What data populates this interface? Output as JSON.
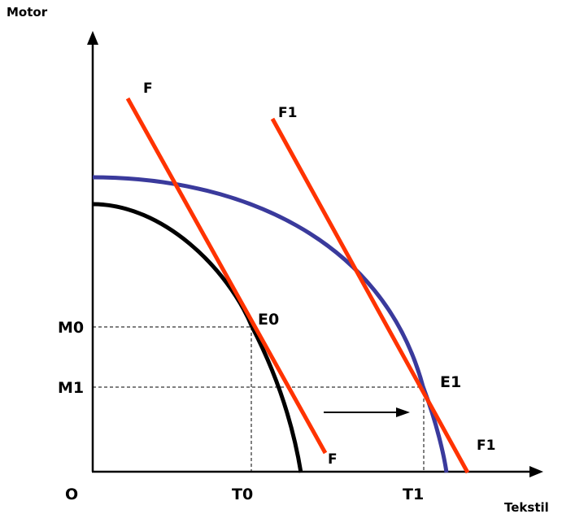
{
  "axes": {
    "y_label": "Motor",
    "x_label": "Tekstil",
    "origin_label": "O"
  },
  "ticks": {
    "m0": "M0",
    "m1": "M1",
    "t0": "T0",
    "t1": "T1"
  },
  "lines": {
    "f_top": "F",
    "f_bottom": "F",
    "f1_top": "F1",
    "f1_bottom": "F1"
  },
  "points": {
    "e0": "E0",
    "e1": "E1"
  },
  "colors": {
    "axis": "#000000",
    "initial_ppf": "#000000",
    "expanded_ppf": "#3a3a9c",
    "price_lines": "#ff3300",
    "guides": "#000000"
  }
}
